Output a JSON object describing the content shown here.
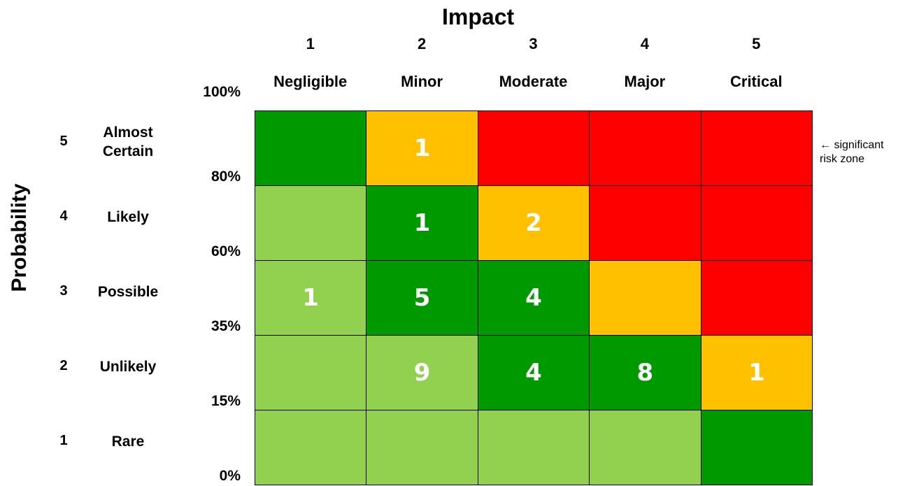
{
  "colors": {
    "dark_green": "#009900",
    "light_green": "#92d050",
    "amber": "#ffc000",
    "red": "#ff0000",
    "grid_line": "#000000",
    "value_text": "#ffffff"
  },
  "annotation": {
    "arrow_icon": "left-arrow-icon",
    "arrow": "←",
    "line1": "significant",
    "line2": "risk zone"
  },
  "chart_data": {
    "type": "heatmap",
    "title": "",
    "xlabel": "Impact",
    "ylabel": "Probability",
    "impact_levels": [
      {
        "number": "1",
        "name": "Negligible"
      },
      {
        "number": "2",
        "name": "Minor"
      },
      {
        "number": "3",
        "name": "Moderate"
      },
      {
        "number": "4",
        "name": "Major"
      },
      {
        "number": "5",
        "name": "Critical"
      }
    ],
    "probability_levels": [
      {
        "number": "5",
        "name": "Almost Certain"
      },
      {
        "number": "4",
        "name": "Likely"
      },
      {
        "number": "3",
        "name": "Possible"
      },
      {
        "number": "2",
        "name": "Unlikely"
      },
      {
        "number": "1",
        "name": "Rare"
      }
    ],
    "probability_thresholds": [
      "100%",
      "80%",
      "60%",
      "35%",
      "15%",
      "0%"
    ],
    "zones": [
      [
        "dark_green",
        "amber",
        "red",
        "red",
        "red"
      ],
      [
        "light_green",
        "dark_green",
        "amber",
        "red",
        "red"
      ],
      [
        "light_green",
        "dark_green",
        "dark_green",
        "amber",
        "red"
      ],
      [
        "light_green",
        "light_green",
        "dark_green",
        "dark_green",
        "amber"
      ],
      [
        "light_green",
        "light_green",
        "light_green",
        "light_green",
        "dark_green"
      ]
    ],
    "counts": [
      [
        null,
        1,
        null,
        null,
        null
      ],
      [
        null,
        1,
        2,
        null,
        null
      ],
      [
        1,
        5,
        4,
        null,
        null
      ],
      [
        null,
        9,
        4,
        8,
        1
      ],
      [
        null,
        null,
        null,
        null,
        null
      ]
    ]
  }
}
